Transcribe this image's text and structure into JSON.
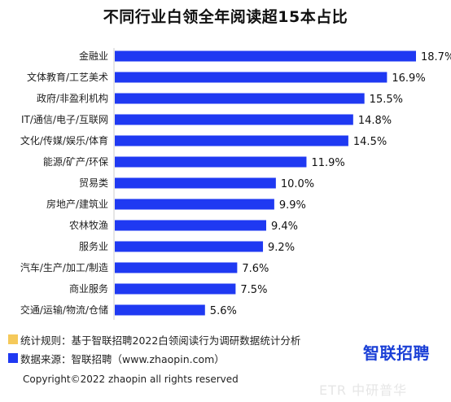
{
  "chart_data": {
    "type": "bar",
    "orientation": "horizontal",
    "title": "不同行业白领全年阅读超15本占比",
    "categories": [
      "金融业",
      "文体教育/工艺美术",
      "政府/非盈利机构",
      "IT/通信/电子/互联网",
      "文化/传媒/娱乐/体育",
      "能源/矿产/环保",
      "贸易类",
      "房地产/建筑业",
      "农林牧渔",
      "服务业",
      "汽车/生产/加工/制造",
      "商业服务",
      "交通/运输/物流/仓储"
    ],
    "values": [
      18.7,
      16.9,
      15.5,
      14.8,
      14.5,
      11.9,
      10.0,
      9.9,
      9.4,
      9.2,
      7.6,
      7.5,
      5.6
    ],
    "value_labels": [
      "18.7%",
      "16.9%",
      "15.5%",
      "14.8%",
      "14.5%",
      "11.9%",
      "10.0%",
      "9.9%",
      "9.4%",
      "9.2%",
      "7.6%",
      "7.5%",
      "5.6%"
    ],
    "bar_color": "#1f39f2",
    "xlim": [
      0,
      18.7
    ],
    "grid": false,
    "legend": "none"
  },
  "notes": [
    {
      "swatch_color": "#f5c95a",
      "text": "统计规则：基于智联招聘2022白领阅读行为调研数据统计分析"
    },
    {
      "swatch_color": "#1f39f2",
      "text": "数据来源：智联招聘（www.zhaopin.com）"
    }
  ],
  "logo_text": "智联招聘",
  "copyright": "Copyright©2022 zhaopin all rights reserved",
  "watermark": "ETR 中研普华"
}
